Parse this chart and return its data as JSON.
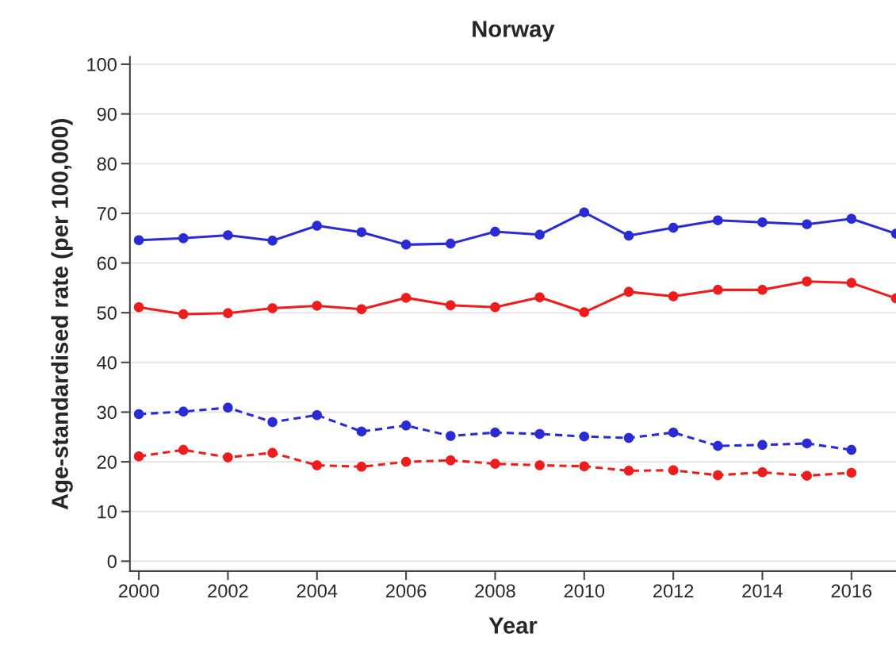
{
  "chart_data": {
    "type": "line",
    "title": "Norway",
    "xlabel": "Year",
    "ylabel": "Age-standardised rate (per 100,000)",
    "xlim": [
      1999.8,
      2017
    ],
    "xticks": [
      2000,
      2002,
      2004,
      2006,
      2008,
      2010,
      2012,
      2014,
      2016
    ],
    "ylim": [
      -2,
      101.5
    ],
    "yticks": [
      0,
      10,
      20,
      30,
      40,
      50,
      60,
      70,
      80,
      90,
      100
    ],
    "grid": "y",
    "marker": "circle",
    "series": [
      {
        "color": "#2b2bd6",
        "line_style": "solid",
        "x": [
          2000,
          2001,
          2002,
          2003,
          2004,
          2005,
          2006,
          2007,
          2008,
          2009,
          2010,
          2011,
          2012,
          2013,
          2014,
          2015,
          2016,
          2017
        ],
        "values": [
          64.6,
          65.0,
          65.6,
          64.5,
          67.5,
          66.2,
          63.7,
          63.9,
          66.3,
          65.7,
          70.2,
          65.5,
          67.1,
          68.6,
          68.2,
          67.8,
          68.9,
          65.9
        ]
      },
      {
        "color": "#ee1c1c",
        "line_style": "solid",
        "x": [
          2000,
          2001,
          2002,
          2003,
          2004,
          2005,
          2006,
          2007,
          2008,
          2009,
          2010,
          2011,
          2012,
          2013,
          2014,
          2015,
          2016,
          2017
        ],
        "values": [
          51.1,
          49.7,
          49.9,
          50.9,
          51.4,
          50.7,
          53.0,
          51.5,
          51.1,
          53.1,
          50.1,
          54.2,
          53.3,
          54.6,
          54.6,
          56.3,
          56.0,
          52.9
        ]
      },
      {
        "color": "#2b2bd6",
        "line_style": "dashed",
        "x": [
          2000,
          2001,
          2002,
          2003,
          2004,
          2005,
          2006,
          2007,
          2008,
          2009,
          2010,
          2011,
          2012,
          2013,
          2014,
          2015,
          2016
        ],
        "values": [
          29.6,
          30.1,
          30.9,
          28.0,
          29.4,
          26.1,
          27.3,
          25.2,
          25.9,
          25.6,
          25.1,
          24.8,
          25.9,
          23.2,
          23.4,
          23.7,
          22.4
        ]
      },
      {
        "color": "#ee1c1c",
        "line_style": "dashed",
        "x": [
          2000,
          2001,
          2002,
          2003,
          2004,
          2005,
          2006,
          2007,
          2008,
          2009,
          2010,
          2011,
          2012,
          2013,
          2014,
          2015,
          2016
        ],
        "values": [
          21.1,
          22.4,
          20.9,
          21.8,
          19.3,
          19.0,
          20.0,
          20.3,
          19.6,
          19.3,
          19.1,
          18.2,
          18.3,
          17.3,
          17.9,
          17.2,
          17.8
        ]
      }
    ]
  }
}
